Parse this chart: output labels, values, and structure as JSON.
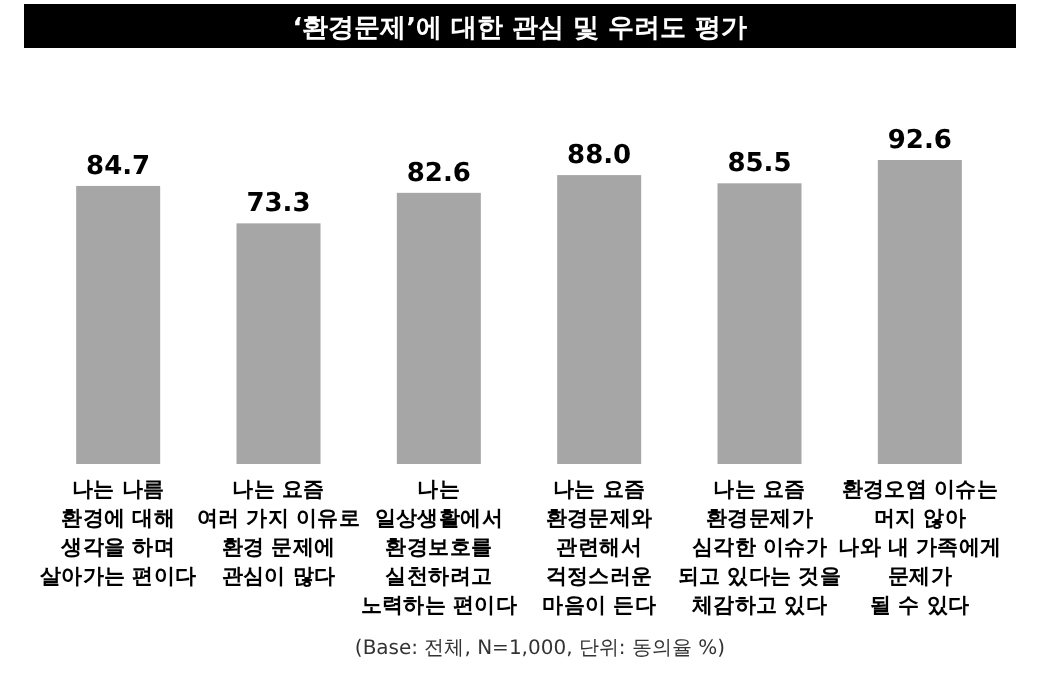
{
  "chart_data": {
    "type": "bar",
    "title": "‘환경문제’에 대한 관심 및 우려도 평가",
    "categories": [
      "나는 나름\n환경에 대해\n생각을 하며\n살아가는 편이다",
      "나는 요즘\n여러 가지 이유로\n환경 문제에\n관심이 많다",
      "나는\n일상생활에서\n환경보호를\n실천하려고\n노력하는 편이다",
      "나는 요즘\n환경문제와\n관련해서\n걱정스러운\n마음이 든다",
      "나는 요즘\n환경문제가\n심각한 이슈가\n되고 있다는 것을\n체감하고 있다",
      "환경오염 이슈는\n머지 않아\n나와 내 가족에게\n문제가\n될 수 있다"
    ],
    "values": [
      84.7,
      73.3,
      82.6,
      88.0,
      85.5,
      92.6
    ],
    "color": "#a6a6a6",
    "value_labels": [
      "84.7",
      "73.3",
      "82.6",
      "88.0",
      "85.5",
      "92.6"
    ],
    "annotations": [
      "(Base: 전체, N=1,000, 단위: 동의율 %)"
    ]
  }
}
